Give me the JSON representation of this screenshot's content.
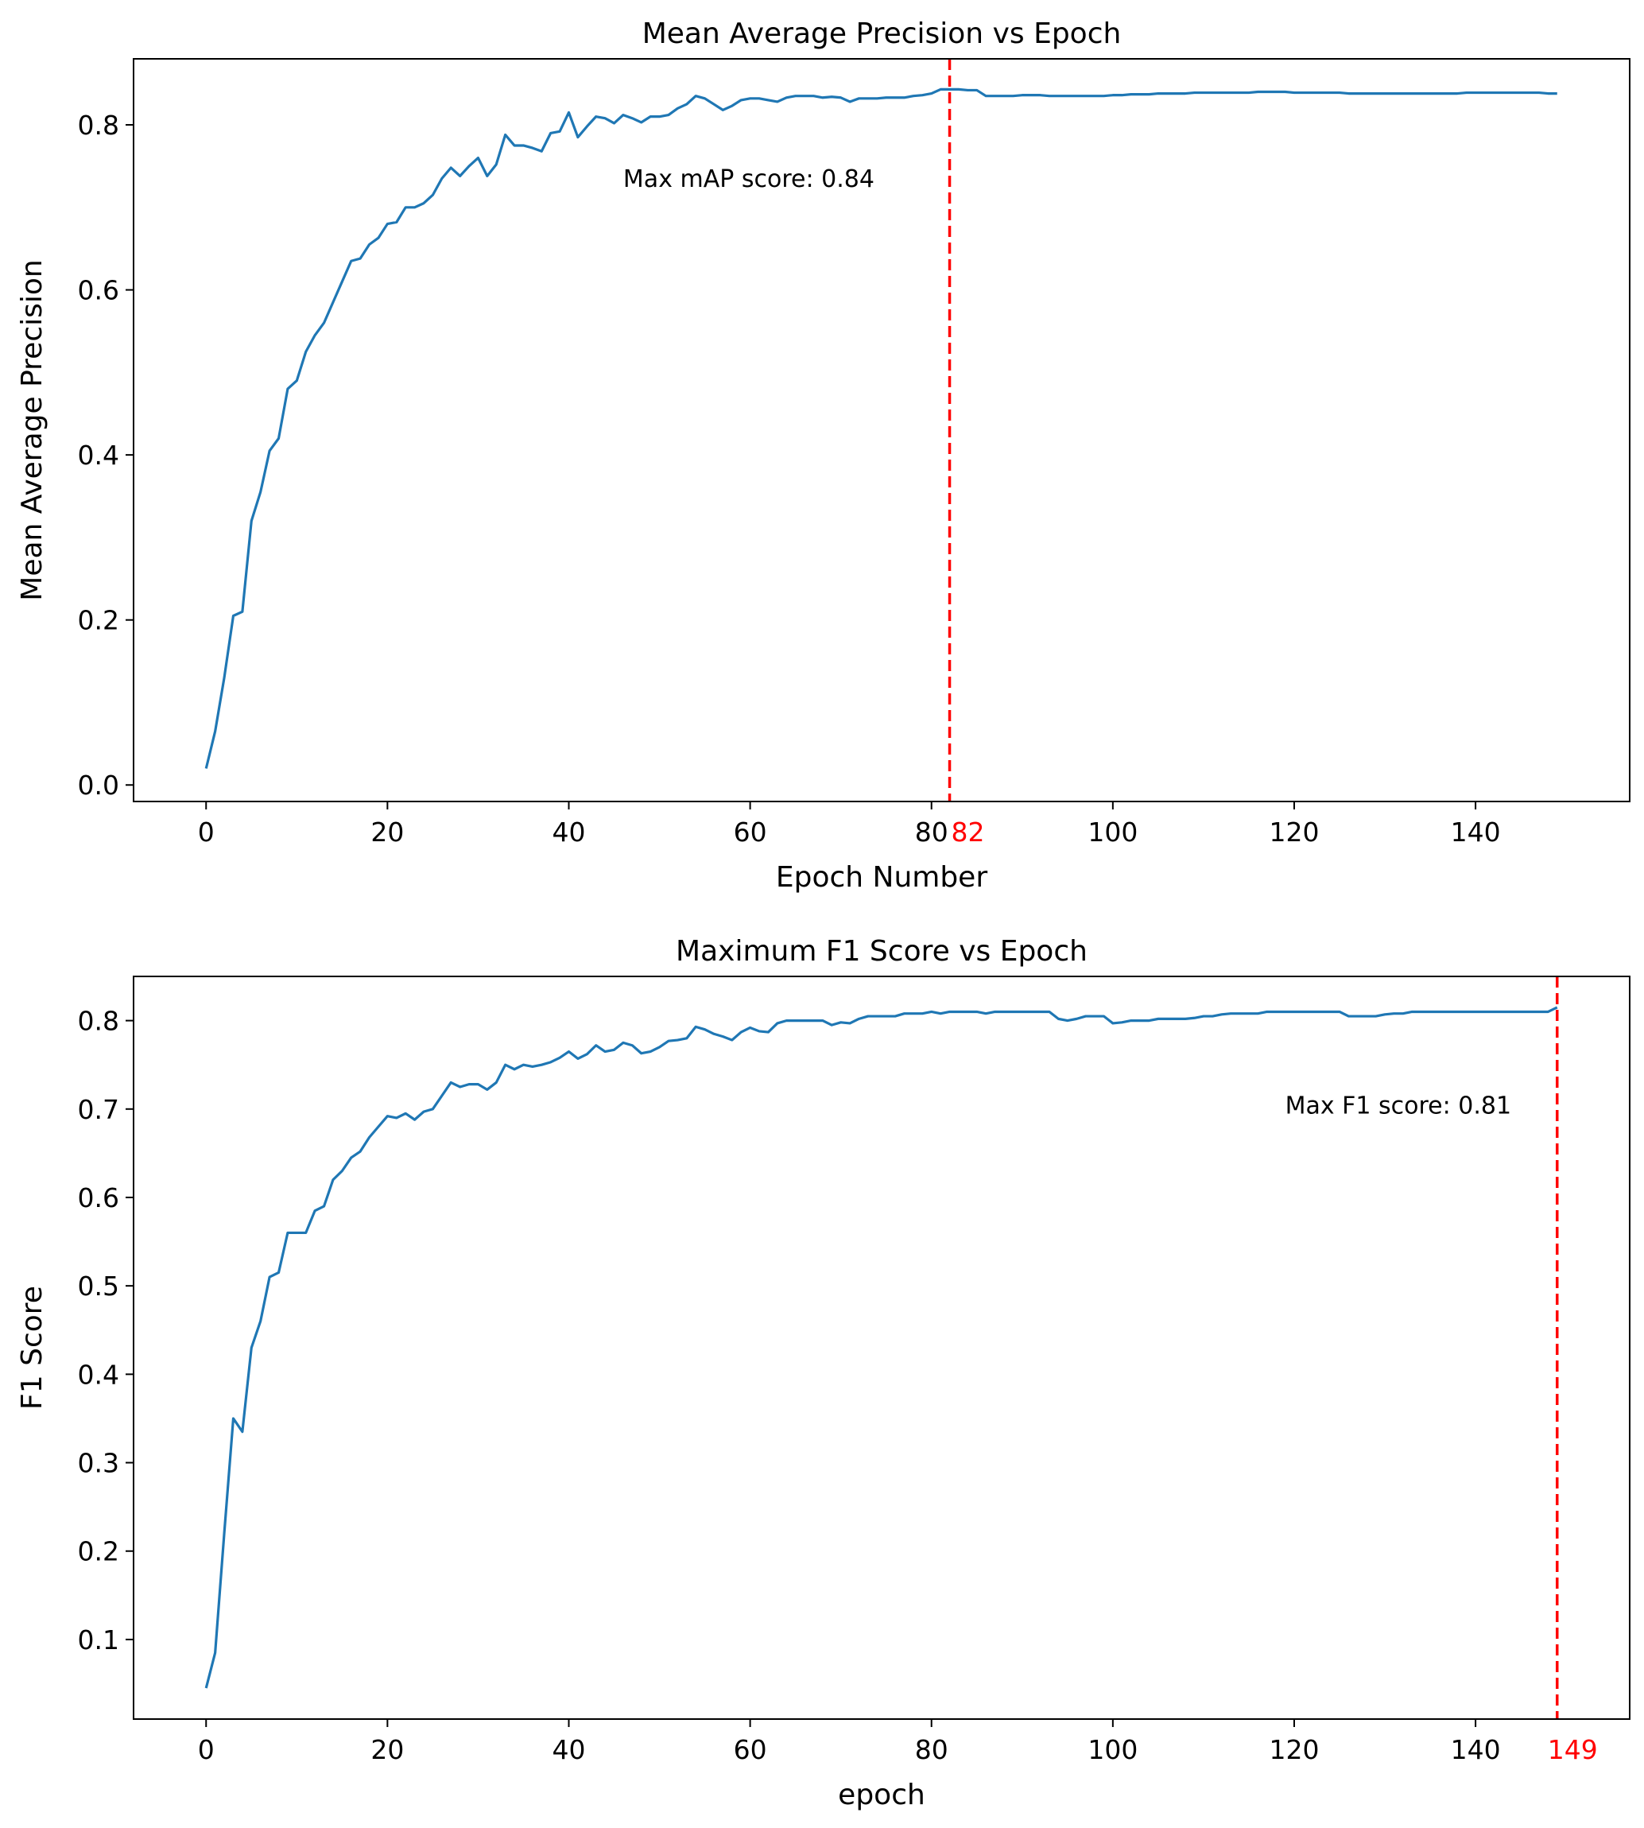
{
  "colors": {
    "line": "#1f77b4",
    "marker_line": "#ff0000",
    "marker_label": "#ff0000",
    "frame": "#000000"
  },
  "chart_data": [
    {
      "type": "line",
      "title": "Mean Average Precision vs Epoch",
      "xlabel": "Epoch Number",
      "ylabel": "Mean Average Precision",
      "xlim": [
        -8,
        157
      ],
      "ylim": [
        -0.02,
        0.88
      ],
      "xticks": [
        0,
        20,
        40,
        60,
        80,
        100,
        120,
        140
      ],
      "xtick_labels": [
        "0",
        "20",
        "40",
        "60",
        "80",
        "100",
        "120",
        "140"
      ],
      "yticks": [
        0.0,
        0.2,
        0.4,
        0.6,
        0.8
      ],
      "ytick_labels": [
        "0.0",
        "0.2",
        "0.4",
        "0.6",
        "0.8"
      ],
      "grid": false,
      "highlight": {
        "x": 82,
        "label": "82"
      },
      "annotation": {
        "text": "Max mAP score: 0.84",
        "x": 46,
        "y": 0.725
      },
      "series": [
        {
          "values": [
            0.02,
            0.065,
            0.13,
            0.205,
            0.21,
            0.32,
            0.355,
            0.405,
            0.42,
            0.48,
            0.49,
            0.525,
            0.545,
            0.56,
            0.585,
            0.61,
            0.635,
            0.638,
            0.655,
            0.663,
            0.68,
            0.682,
            0.7,
            0.7,
            0.705,
            0.715,
            0.735,
            0.748,
            0.738,
            0.75,
            0.76,
            0.738,
            0.752,
            0.788,
            0.775,
            0.775,
            0.772,
            0.768,
            0.79,
            0.792,
            0.815,
            0.785,
            0.798,
            0.81,
            0.808,
            0.802,
            0.812,
            0.808,
            0.803,
            0.81,
            0.81,
            0.812,
            0.82,
            0.825,
            0.835,
            0.832,
            0.825,
            0.818,
            0.823,
            0.83,
            0.832,
            0.832,
            0.83,
            0.828,
            0.833,
            0.835,
            0.835,
            0.835,
            0.833,
            0.834,
            0.833,
            0.828,
            0.832,
            0.832,
            0.832,
            0.833,
            0.833,
            0.833,
            0.835,
            0.836,
            0.838,
            0.843,
            0.843,
            0.843,
            0.842,
            0.842,
            0.835,
            0.835,
            0.835,
            0.835,
            0.836,
            0.836,
            0.836,
            0.835,
            0.835,
            0.835,
            0.835,
            0.835,
            0.835,
            0.835,
            0.836,
            0.836,
            0.837,
            0.837,
            0.837,
            0.838,
            0.838,
            0.838,
            0.838,
            0.839,
            0.839,
            0.839,
            0.839,
            0.839,
            0.839,
            0.839,
            0.84,
            0.84,
            0.84,
            0.84,
            0.839,
            0.839,
            0.839,
            0.839,
            0.839,
            0.839,
            0.838,
            0.838,
            0.838,
            0.838,
            0.838,
            0.838,
            0.838,
            0.838,
            0.838,
            0.838,
            0.838,
            0.838,
            0.838,
            0.839,
            0.839,
            0.839,
            0.839,
            0.839,
            0.839,
            0.839,
            0.839,
            0.839,
            0.838,
            0.838
          ]
        }
      ]
    },
    {
      "type": "line",
      "title": "Maximum F1 Score vs Epoch",
      "xlabel": "epoch",
      "ylabel": "F1 Score",
      "xlim": [
        -8,
        157
      ],
      "ylim": [
        0.01,
        0.85
      ],
      "xticks": [
        0,
        20,
        40,
        60,
        80,
        100,
        120,
        140
      ],
      "xtick_labels": [
        "0",
        "20",
        "40",
        "60",
        "80",
        "100",
        "120",
        "140"
      ],
      "yticks": [
        0.1,
        0.2,
        0.3,
        0.4,
        0.5,
        0.6,
        0.7,
        0.8
      ],
      "ytick_labels": [
        "0.1",
        "0.2",
        "0.3",
        "0.4",
        "0.5",
        "0.6",
        "0.7",
        "0.8"
      ],
      "grid": false,
      "highlight": {
        "x": 149,
        "label": "149"
      },
      "annotation": {
        "text": "Max F1 score: 0.81",
        "x": 119,
        "y": 0.695
      },
      "series": [
        {
          "values": [
            0.045,
            0.085,
            0.22,
            0.35,
            0.335,
            0.43,
            0.46,
            0.51,
            0.515,
            0.56,
            0.56,
            0.56,
            0.585,
            0.59,
            0.62,
            0.63,
            0.645,
            0.652,
            0.668,
            0.68,
            0.692,
            0.69,
            0.695,
            0.688,
            0.697,
            0.7,
            0.715,
            0.73,
            0.725,
            0.728,
            0.728,
            0.722,
            0.73,
            0.75,
            0.745,
            0.75,
            0.748,
            0.75,
            0.753,
            0.758,
            0.765,
            0.757,
            0.762,
            0.772,
            0.765,
            0.767,
            0.775,
            0.772,
            0.763,
            0.765,
            0.77,
            0.777,
            0.778,
            0.78,
            0.793,
            0.79,
            0.785,
            0.782,
            0.778,
            0.787,
            0.792,
            0.788,
            0.787,
            0.797,
            0.8,
            0.8,
            0.8,
            0.8,
            0.8,
            0.795,
            0.798,
            0.797,
            0.802,
            0.805,
            0.805,
            0.805,
            0.805,
            0.808,
            0.808,
            0.808,
            0.81,
            0.808,
            0.81,
            0.81,
            0.81,
            0.81,
            0.808,
            0.81,
            0.81,
            0.81,
            0.81,
            0.81,
            0.81,
            0.81,
            0.802,
            0.8,
            0.802,
            0.805,
            0.805,
            0.805,
            0.797,
            0.798,
            0.8,
            0.8,
            0.8,
            0.802,
            0.802,
            0.802,
            0.802,
            0.803,
            0.805,
            0.805,
            0.807,
            0.808,
            0.808,
            0.808,
            0.808,
            0.81,
            0.81,
            0.81,
            0.81,
            0.81,
            0.81,
            0.81,
            0.81,
            0.81,
            0.805,
            0.805,
            0.805,
            0.805,
            0.807,
            0.808,
            0.808,
            0.81,
            0.81,
            0.81,
            0.81,
            0.81,
            0.81,
            0.81,
            0.81,
            0.81,
            0.81,
            0.81,
            0.81,
            0.81,
            0.81,
            0.81,
            0.81,
            0.815
          ]
        }
      ]
    }
  ]
}
